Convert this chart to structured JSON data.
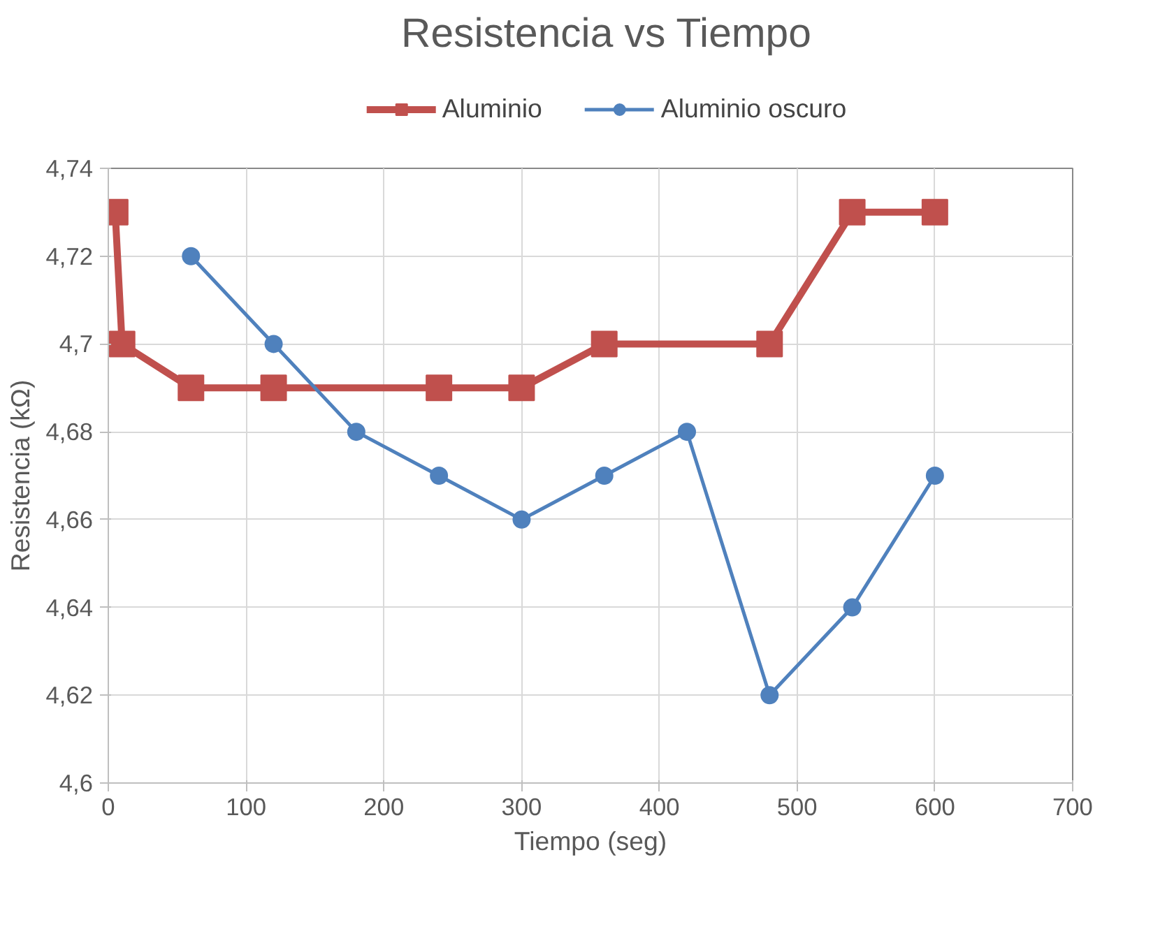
{
  "chart_data": {
    "type": "line",
    "title": "Resistencia vs Tiempo",
    "xlabel": "Tiempo (seg)",
    "ylabel": "Resistencia (kΩ)",
    "series": [
      {
        "name": "Aluminio",
        "color": "#c0504d",
        "marker": "square",
        "x": [
          5,
          10,
          60,
          120,
          240,
          300,
          360,
          480,
          540,
          600
        ],
        "values": [
          4.73,
          4.7,
          4.69,
          4.69,
          4.69,
          4.69,
          4.7,
          4.7,
          4.73,
          4.73
        ]
      },
      {
        "name": "Aluminio oscuro",
        "color": "#4f81bd",
        "marker": "circle",
        "x": [
          60,
          120,
          180,
          240,
          300,
          360,
          420,
          480,
          540,
          600
        ],
        "values": [
          4.72,
          4.7,
          4.68,
          4.67,
          4.66,
          4.67,
          4.68,
          4.62,
          4.64,
          4.67
        ]
      }
    ],
    "xlim": [
      0,
      700
    ],
    "xticks": [
      0,
      100,
      200,
      300,
      400,
      500,
      600,
      700
    ],
    "ylim": [
      4.6,
      4.74
    ],
    "yticks": [
      {
        "value": 4.6,
        "label": "4,6"
      },
      {
        "value": 4.62,
        "label": "4,62"
      },
      {
        "value": 4.64,
        "label": "4,64"
      },
      {
        "value": 4.66,
        "label": "4,66"
      },
      {
        "value": 4.68,
        "label": "4,68"
      },
      {
        "value": 4.7,
        "label": "4,7"
      },
      {
        "value": 4.72,
        "label": "4,72"
      },
      {
        "value": 4.74,
        "label": "4,74"
      }
    ],
    "grid": true,
    "legend": "top",
    "line_style": "solid"
  }
}
